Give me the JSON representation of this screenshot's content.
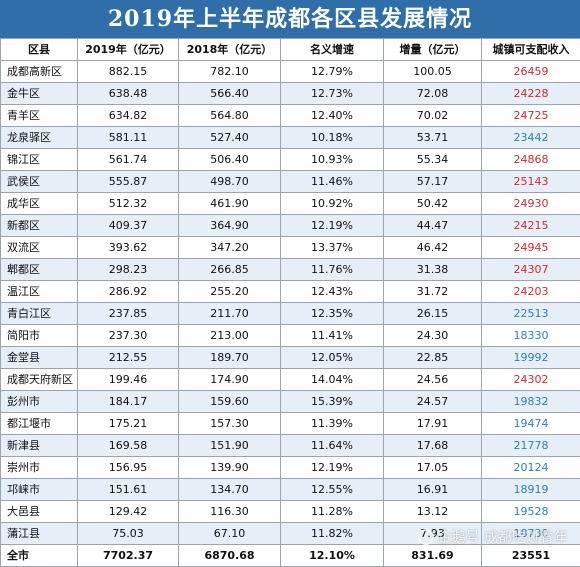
{
  "title": "2019年上半年成都各区县发展情况",
  "headers": [
    "区县",
    "2019年（亿元）",
    "2018年（亿元）",
    "名义增速",
    "增量（亿元）",
    "城镇可支配收入"
  ],
  "rows": [
    {
      "name": "成都高新区",
      "y2019": "882.15",
      "y2018": "782.10",
      "growth": "12.79%",
      "increase": "100.05",
      "income": "26459",
      "income_color": "red"
    },
    {
      "name": "金牛区",
      "y2019": "638.48",
      "y2018": "566.40",
      "growth": "12.73%",
      "increase": "72.08",
      "income": "24228",
      "income_color": "red"
    },
    {
      "name": "青羊区",
      "y2019": "634.82",
      "y2018": "564.80",
      "growth": "12.40%",
      "increase": "70.02",
      "income": "24725",
      "income_color": "red"
    },
    {
      "name": "龙泉驿区",
      "y2019": "581.11",
      "y2018": "527.40",
      "growth": "10.18%",
      "increase": "53.71",
      "income": "23442",
      "income_color": "blue"
    },
    {
      "name": "锦江区",
      "y2019": "561.74",
      "y2018": "506.40",
      "growth": "10.93%",
      "increase": "55.34",
      "income": "24868",
      "income_color": "red"
    },
    {
      "name": "武侯区",
      "y2019": "555.87",
      "y2018": "498.70",
      "growth": "11.46%",
      "increase": "57.17",
      "income": "25143",
      "income_color": "red"
    },
    {
      "name": "成华区",
      "y2019": "512.32",
      "y2018": "461.90",
      "growth": "10.92%",
      "increase": "50.42",
      "income": "24930",
      "income_color": "red"
    },
    {
      "name": "新都区",
      "y2019": "409.37",
      "y2018": "364.90",
      "growth": "12.19%",
      "increase": "44.47",
      "income": "24215",
      "income_color": "red"
    },
    {
      "name": "双流区",
      "y2019": "393.62",
      "y2018": "347.20",
      "growth": "13.37%",
      "increase": "46.42",
      "income": "24945",
      "income_color": "red"
    },
    {
      "name": "郫都区",
      "y2019": "298.23",
      "y2018": "266.85",
      "growth": "11.76%",
      "increase": "31.38",
      "income": "24307",
      "income_color": "red"
    },
    {
      "name": "温江区",
      "y2019": "286.92",
      "y2018": "255.20",
      "growth": "12.43%",
      "increase": "31.72",
      "income": "24203",
      "income_color": "red"
    },
    {
      "name": "青白江区",
      "y2019": "237.85",
      "y2018": "211.70",
      "growth": "12.35%",
      "increase": "26.15",
      "income": "22513",
      "income_color": "blue"
    },
    {
      "name": "简阳市",
      "y2019": "237.30",
      "y2018": "213.00",
      "growth": "11.41%",
      "increase": "24.30",
      "income": "18330",
      "income_color": "blue"
    },
    {
      "name": "金堂县",
      "y2019": "212.55",
      "y2018": "189.70",
      "growth": "12.05%",
      "increase": "22.85",
      "income": "19992",
      "income_color": "blue"
    },
    {
      "name": "成都天府新区",
      "y2019": "199.46",
      "y2018": "174.90",
      "growth": "14.04%",
      "increase": "24.56",
      "income": "24302",
      "income_color": "red"
    },
    {
      "name": "彭州市",
      "y2019": "184.17",
      "y2018": "159.60",
      "growth": "15.39%",
      "increase": "24.57",
      "income": "19832",
      "income_color": "blue"
    },
    {
      "name": "都江堰市",
      "y2019": "175.21",
      "y2018": "157.30",
      "growth": "11.39%",
      "increase": "17.91",
      "income": "19474",
      "income_color": "blue"
    },
    {
      "name": "新津县",
      "y2019": "169.58",
      "y2018": "151.90",
      "growth": "11.64%",
      "increase": "17.68",
      "income": "21778",
      "income_color": "blue"
    },
    {
      "name": "崇州市",
      "y2019": "156.95",
      "y2018": "139.90",
      "growth": "12.19%",
      "increase": "17.05",
      "income": "20124",
      "income_color": "blue"
    },
    {
      "name": "邛崃市",
      "y2019": "151.61",
      "y2018": "134.70",
      "growth": "12.55%",
      "increase": "16.91",
      "income": "18919",
      "income_color": "blue"
    },
    {
      "name": "大邑县",
      "y2019": "129.42",
      "y2018": "116.30",
      "growth": "11.28%",
      "increase": "13.12",
      "income": "19528",
      "income_color": "blue"
    },
    {
      "name": "蒲江县",
      "y2019": "75.03",
      "y2018": "67.10",
      "growth": "11.82%",
      "increase": "7.93",
      "income": "18730",
      "income_color": "blue"
    }
  ],
  "total": {
    "name": "全市",
    "y2019": "7702.37",
    "y2018": "6870.68",
    "growth": "12.10%",
    "increase": "831.69",
    "income": "23551"
  },
  "watermark": "企鹅号 成都吃过青年",
  "colors": {
    "title_bg": "#2f6ea8",
    "stripe": "#e6eef8",
    "high_income": "#d42a2a",
    "low_income": "#2f7fb8"
  }
}
